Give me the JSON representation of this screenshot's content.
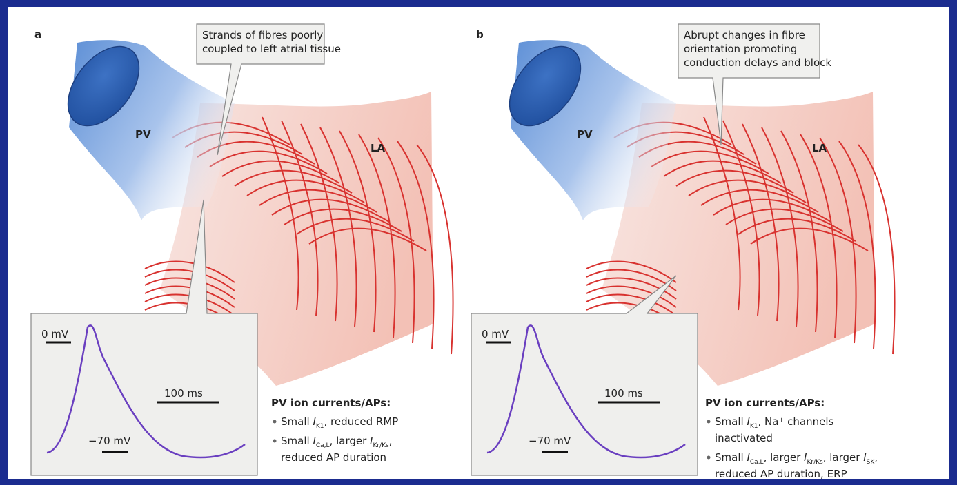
{
  "panels": [
    {
      "label": "a",
      "callout": [
        "Strands of fibres poorly",
        "coupled to left atrial tissue"
      ],
      "pv_label": "PV",
      "la_label": "LA",
      "inset": {
        "top_label": "0 mV",
        "time_scale": "100 ms",
        "bottom_label": "−70 mV"
      },
      "currents": {
        "heading": "PV ion currents/APs:",
        "bullets": [
          [
            [
              "Small ",
              {
                "symbol": "I",
                "subscript": "K1"
              },
              ", reduced RMP"
            ]
          ],
          [
            [
              "Small ",
              {
                "symbol": "I",
                "subscript": "Ca,L"
              },
              ", larger ",
              {
                "symbol": "I",
                "subscript": "Kr/Ks"
              },
              ","
            ],
            [
              "reduced AP duration"
            ]
          ]
        ]
      }
    },
    {
      "label": "b",
      "callout": [
        "Abrupt changes in fibre",
        "orientation promoting",
        "conduction delays and block"
      ],
      "pv_label": "PV",
      "la_label": "LA",
      "inset": {
        "top_label": "0 mV",
        "time_scale": "100 ms",
        "bottom_label": "−70 mV"
      },
      "currents": {
        "heading": "PV ion currents/APs:",
        "bullets": [
          [
            [
              "Small ",
              {
                "symbol": "I",
                "subscript": "K1"
              },
              ", Na⁺ channels"
            ],
            [
              "inactivated"
            ]
          ],
          [
            [
              "Small ",
              {
                "symbol": "I",
                "subscript": "Ca,L"
              },
              ", larger ",
              {
                "symbol": "I",
                "subscript": "Kr/Ks"
              },
              ", larger ",
              {
                "symbol": "I",
                "subscript": "SK"
              },
              ","
            ],
            [
              "reduced AP duration, ERP"
            ]
          ]
        ]
      }
    }
  ]
}
